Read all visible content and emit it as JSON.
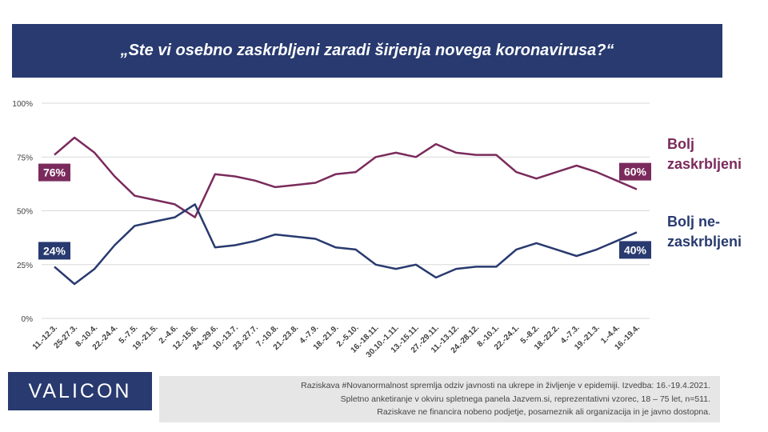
{
  "title": "„Ste vi osebno zaskrbljeni zaradi širjenja novega koronavirusa?“",
  "logo": "VALICON",
  "footer": {
    "lines": [
      "Raziskava #Novanormalnost spremlja odziv javnosti na ukrepe in življenje v epidemiji. Izvedba: 16.-19.4.2021.",
      "Spletno anketiranje v okviru spletnega panela Jazvem.si, reprezentativni vzorec, 18 – 75 let, n=511.",
      "Raziskave ne financira nobeno podjetje, posameznik ali organizacija in je javno dostopna."
    ]
  },
  "colors": {
    "concerned": "#7a2b5c",
    "not_concerned": "#283a6f",
    "gridline": "#d9d9d9",
    "banner": "#283a6f"
  },
  "chart_data": {
    "type": "line",
    "title": "„Ste vi osebno zaskrbljeni zaradi širjenja novega koronavirusa?“",
    "ylim": [
      0,
      100
    ],
    "yticks": [
      0,
      25,
      50,
      75,
      100
    ],
    "ytick_labels": [
      "0%",
      "25%",
      "50%",
      "75%",
      "100%"
    ],
    "grid": true,
    "categories": [
      "11.-12.3.",
      "25-27.3.",
      "8.-10.4.",
      "22.-24.4.",
      "5.-7.5.",
      "19.-21.5.",
      "2.-4.6.",
      "12.-15.6.",
      "24.-29.6.",
      "10.-13.7.",
      "23.-27.7.",
      "7.-10.8.",
      "21.-23.8.",
      "4.-7.9.",
      "18.-21.9.",
      "2.-5.10.",
      "16.-18.11.",
      "30.10.-1.11.",
      "13.-15.11.",
      "27.-29.11.",
      "11.-13.12.",
      "24.-28.12.",
      "8.-10.1.",
      "22.-24.1.",
      "5.-8.2.",
      "18.-22.2.",
      "4.-7.3.",
      "19.-21.3.",
      "1.-4.4.",
      "16.-19.4."
    ],
    "series": [
      {
        "name": "Bolj zaskrbljeni",
        "name_lines": [
          "Bolj",
          "zaskrbljeni"
        ],
        "color": "#7a2b5c",
        "values": [
          76,
          84,
          77,
          66,
          57,
          55,
          53,
          47,
          67,
          66,
          64,
          61,
          62,
          63,
          67,
          68,
          75,
          77,
          75,
          81,
          77,
          76,
          76,
          68,
          65,
          68,
          71,
          68,
          64,
          60
        ],
        "start_label": "76%",
        "end_label": "60%"
      },
      {
        "name": "Bolj ne-zaskrbljeni",
        "name_lines": [
          "Bolj ne-",
          "zaskrbljeni"
        ],
        "color": "#283a6f",
        "values": [
          24,
          16,
          23,
          34,
          43,
          45,
          47,
          53,
          33,
          34,
          36,
          39,
          38,
          37,
          33,
          32,
          25,
          23,
          25,
          19,
          23,
          24,
          24,
          32,
          35,
          32,
          29,
          32,
          36,
          40
        ],
        "start_label": "24%",
        "end_label": "40%"
      }
    ]
  }
}
